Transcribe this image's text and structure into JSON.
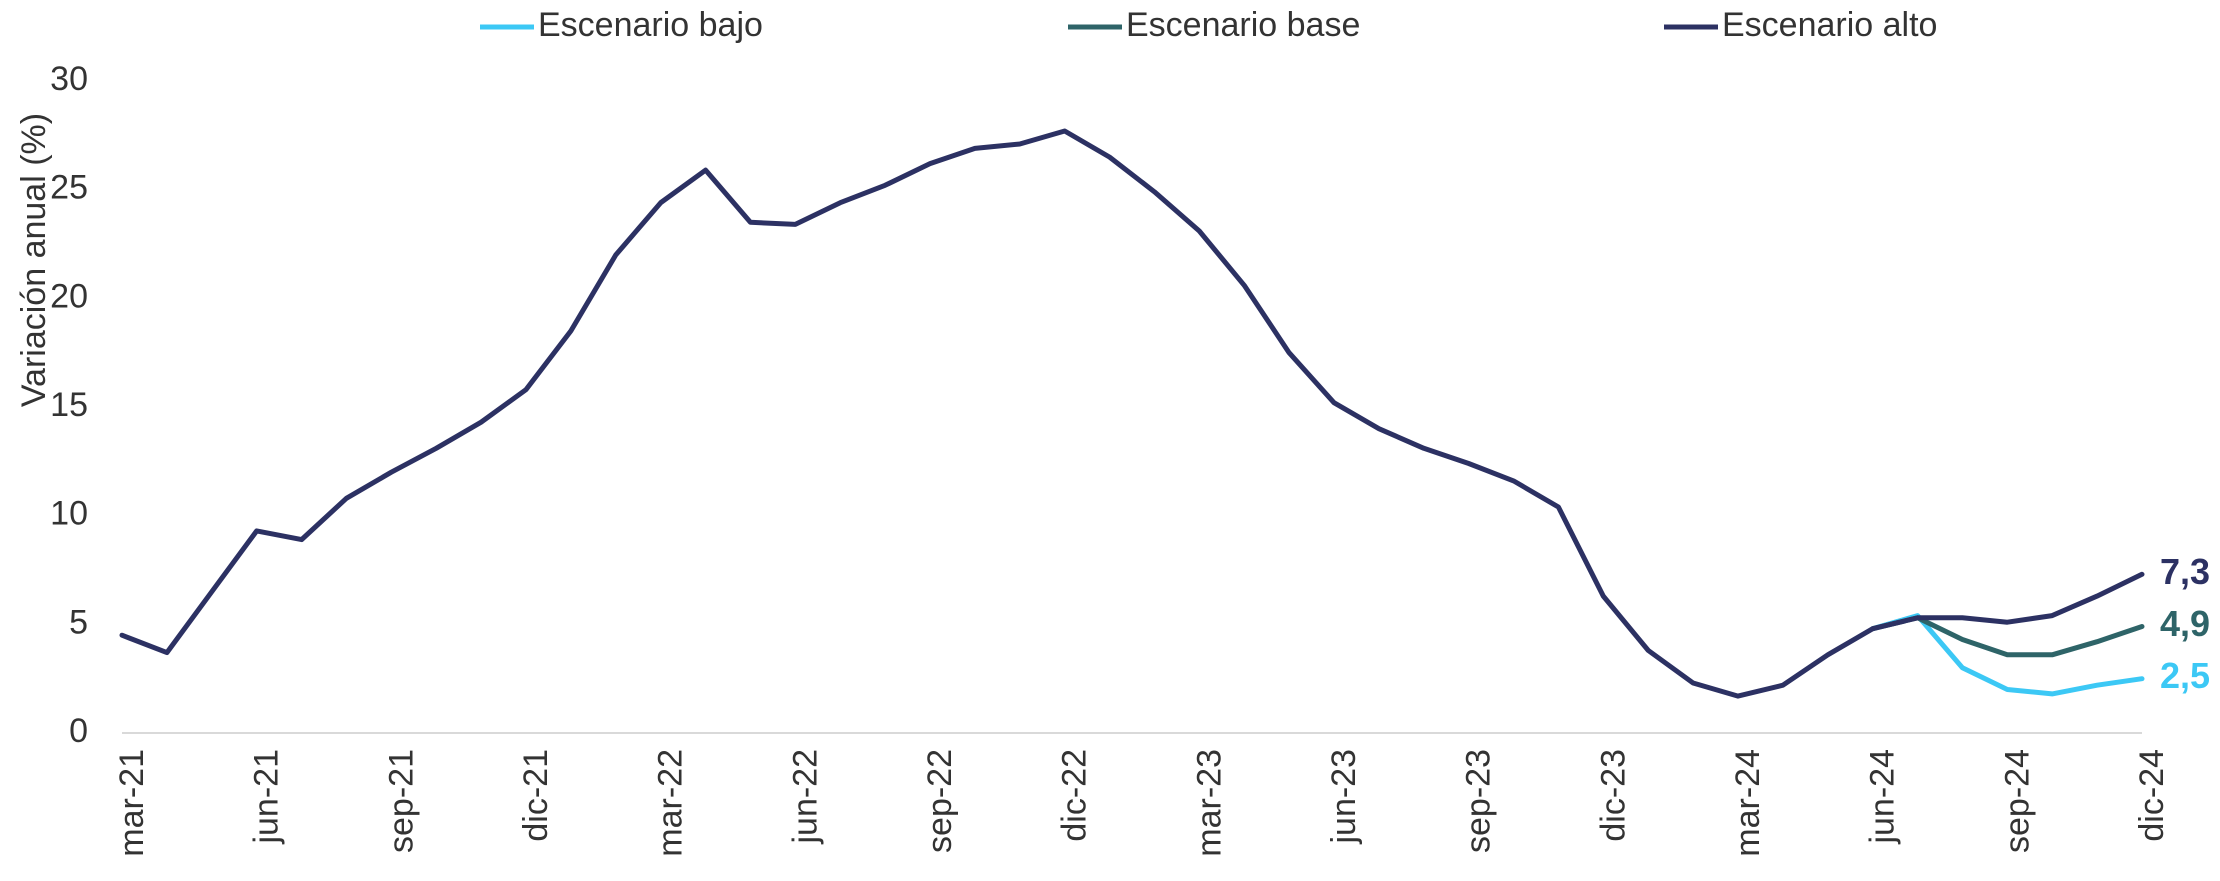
{
  "chart_data": {
    "type": "line",
    "y_label": "Variación anual (%)",
    "categories": [
      "mar-21",
      null,
      null,
      "jun-21",
      null,
      null,
      "sep-21",
      null,
      null,
      "dic-21",
      null,
      null,
      "mar-22",
      null,
      null,
      "jun-22",
      null,
      null,
      "sep-22",
      null,
      null,
      "dic-22",
      null,
      null,
      "mar-23",
      null,
      null,
      "jun-23",
      null,
      null,
      "sep-23",
      null,
      null,
      "dic-23",
      null,
      null,
      "mar-24",
      null,
      null,
      "jun-24",
      null,
      null,
      "sep-24",
      null,
      null,
      "dic-24"
    ],
    "series": [
      {
        "name": "Escenario bajo",
        "color": "#3cc8f5",
        "values": [
          null,
          null,
          null,
          null,
          null,
          null,
          null,
          null,
          null,
          null,
          null,
          null,
          null,
          null,
          null,
          null,
          null,
          null,
          null,
          null,
          null,
          null,
          null,
          null,
          null,
          null,
          null,
          null,
          null,
          null,
          null,
          null,
          null,
          null,
          null,
          null,
          null,
          null,
          null,
          4.8,
          5.4,
          3.0,
          2.0,
          1.8,
          2.2,
          2.5
        ],
        "value_labels": [
          null,
          null,
          null,
          null,
          null,
          null,
          null,
          null,
          null,
          null,
          null,
          null,
          null,
          null,
          null,
          null,
          null,
          null,
          null,
          null,
          null,
          null,
          null,
          null,
          null,
          null,
          null,
          null,
          null,
          null,
          null,
          null,
          null,
          null,
          null,
          null,
          null,
          null,
          null,
          null,
          null,
          null,
          null,
          null,
          null,
          "2,5"
        ]
      },
      {
        "name": "Escenario base",
        "color": "#2e6468",
        "values": [
          null,
          null,
          null,
          null,
          null,
          null,
          null,
          null,
          null,
          null,
          null,
          null,
          null,
          null,
          null,
          null,
          null,
          null,
          null,
          null,
          null,
          null,
          null,
          null,
          null,
          null,
          null,
          null,
          null,
          null,
          null,
          null,
          null,
          null,
          null,
          null,
          null,
          null,
          null,
          4.8,
          5.3,
          4.3,
          3.6,
          3.6,
          4.2,
          4.9
        ],
        "value_labels": [
          null,
          null,
          null,
          null,
          null,
          null,
          null,
          null,
          null,
          null,
          null,
          null,
          null,
          null,
          null,
          null,
          null,
          null,
          null,
          null,
          null,
          null,
          null,
          null,
          null,
          null,
          null,
          null,
          null,
          null,
          null,
          null,
          null,
          null,
          null,
          null,
          null,
          null,
          null,
          null,
          null,
          null,
          null,
          null,
          null,
          "4,9"
        ]
      },
      {
        "name": "Escenario alto",
        "color": "#2c3163",
        "values": [
          4.5,
          3.7,
          6.5,
          9.3,
          8.9,
          10.8,
          12.0,
          13.1,
          14.3,
          15.8,
          18.5,
          22.0,
          24.4,
          25.9,
          23.5,
          23.4,
          24.4,
          25.2,
          26.2,
          26.9,
          27.1,
          27.7,
          26.5,
          24.9,
          23.1,
          20.6,
          17.5,
          15.2,
          14.0,
          13.1,
          12.4,
          11.6,
          10.4,
          6.3,
          3.8,
          2.3,
          1.7,
          2.2,
          3.6,
          4.8,
          5.3,
          5.3,
          5.1,
          5.4,
          6.3,
          7.3
        ],
        "value_labels": [
          null,
          null,
          null,
          null,
          null,
          null,
          null,
          null,
          null,
          null,
          null,
          null,
          null,
          null,
          null,
          null,
          null,
          null,
          null,
          null,
          null,
          null,
          null,
          null,
          null,
          null,
          null,
          null,
          null,
          null,
          null,
          null,
          null,
          null,
          null,
          null,
          null,
          null,
          null,
          null,
          null,
          null,
          null,
          null,
          null,
          "7,3"
        ]
      }
    ],
    "ylim": [
      0,
      30
    ],
    "yticks": [
      0,
      5,
      10,
      15,
      20,
      25,
      30
    ],
    "grid": false,
    "legend": "top"
  }
}
